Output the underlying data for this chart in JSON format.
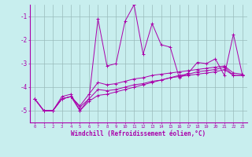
{
  "xlabel": "Windchill (Refroidissement éolien,°C)",
  "background_color": "#c8eeee",
  "line_color": "#aa00aa",
  "grid_color": "#99bbbb",
  "x_values": [
    0,
    1,
    2,
    3,
    4,
    5,
    6,
    7,
    8,
    9,
    10,
    11,
    12,
    13,
    14,
    15,
    16,
    17,
    18,
    19,
    20,
    21,
    22,
    23
  ],
  "series_zigzag": [
    -4.5,
    -5.0,
    -5.0,
    -4.4,
    -4.3,
    -5.0,
    -4.5,
    -1.1,
    -3.1,
    -3.0,
    -1.2,
    -0.5,
    -2.6,
    -1.3,
    -2.2,
    -2.3,
    -3.6,
    -3.4,
    -2.95,
    -3.0,
    -2.8,
    -3.5,
    -1.75,
    -3.5
  ],
  "series_linear1": [
    -4.5,
    -5.0,
    -5.0,
    -4.5,
    -4.4,
    -4.8,
    -4.3,
    -3.8,
    -3.9,
    -3.85,
    -3.75,
    -3.65,
    -3.6,
    -3.5,
    -3.45,
    -3.4,
    -3.35,
    -3.3,
    -3.25,
    -3.2,
    -3.15,
    -3.1,
    -3.4,
    -3.45
  ],
  "series_linear2": [
    -4.5,
    -5.0,
    -5.0,
    -4.5,
    -4.4,
    -4.85,
    -4.5,
    -4.1,
    -4.15,
    -4.1,
    -4.0,
    -3.9,
    -3.85,
    -3.75,
    -3.7,
    -3.6,
    -3.55,
    -3.5,
    -3.45,
    -3.4,
    -3.35,
    -3.25,
    -3.5,
    -3.5
  ],
  "series_linear3": [
    -4.5,
    -5.0,
    -5.0,
    -4.5,
    -4.4,
    -5.0,
    -4.6,
    -4.35,
    -4.3,
    -4.2,
    -4.1,
    -4.0,
    -3.9,
    -3.8,
    -3.7,
    -3.6,
    -3.5,
    -3.45,
    -3.35,
    -3.3,
    -3.25,
    -3.15,
    -3.5,
    -3.5
  ],
  "ylim": [
    -5.5,
    -0.5
  ],
  "yticks": [
    -5,
    -4,
    -3,
    -2,
    -1
  ],
  "xlim": [
    -0.5,
    23.5
  ]
}
